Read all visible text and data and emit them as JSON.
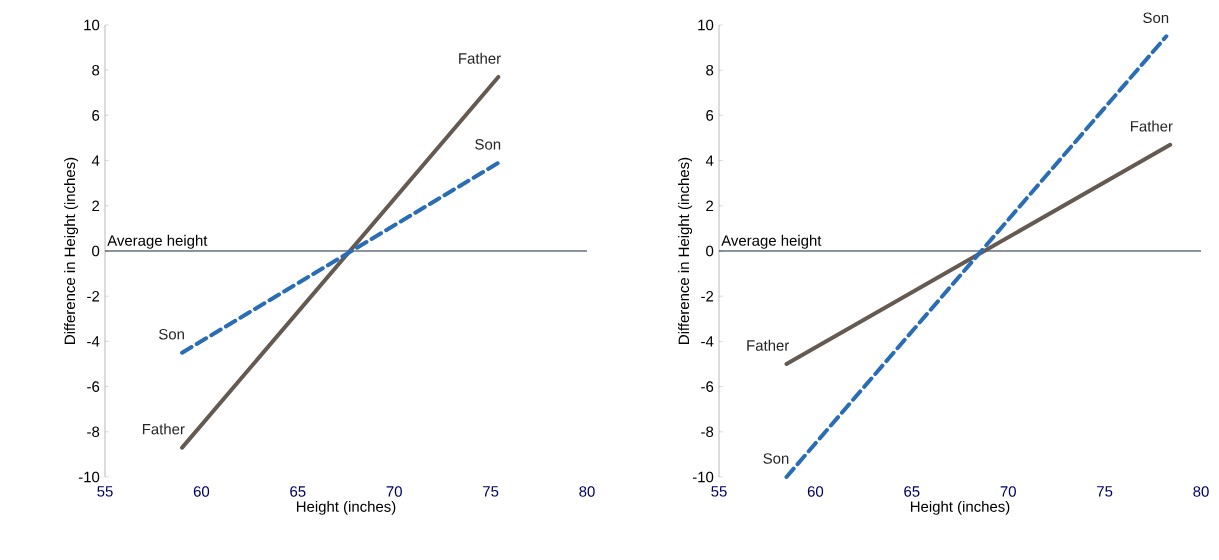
{
  "chart_data": [
    {
      "type": "line",
      "xlabel": "Height (inches)",
      "ylabel": "Difference in Height (inches)",
      "xlim": [
        55,
        80
      ],
      "ylim": [
        -10,
        10
      ],
      "xticks": [
        55,
        60,
        65,
        70,
        75,
        80
      ],
      "yticks": [
        -10,
        -8,
        -6,
        -4,
        -2,
        0,
        2,
        4,
        6,
        8,
        10
      ],
      "grid": false,
      "marker": "none",
      "ref_lines": [
        {
          "axis": "y",
          "value": 0,
          "label": "Average height",
          "color": "#1b2a41"
        }
      ],
      "series": [
        {
          "name": "Father",
          "color": "#655a52",
          "line_style": "solid",
          "x": [
            59.0,
            75.4
          ],
          "values": [
            -8.7,
            7.7
          ]
        },
        {
          "name": "Son",
          "color": "#2a6db5",
          "line_style": "dashed",
          "x": [
            59.0,
            75.4
          ],
          "values": [
            -4.5,
            3.9
          ]
        }
      ]
    },
    {
      "type": "line",
      "xlabel": "Height (inches)",
      "ylabel": "Difference in Height (inches)",
      "xlim": [
        55,
        80
      ],
      "ylim": [
        -10,
        10
      ],
      "xticks": [
        55,
        60,
        65,
        70,
        75,
        80
      ],
      "yticks": [
        -10,
        -8,
        -6,
        -4,
        -2,
        0,
        2,
        4,
        6,
        8,
        10
      ],
      "grid": false,
      "marker": "none",
      "ref_lines": [
        {
          "axis": "y",
          "value": 0,
          "label": "Average height",
          "color": "#1b2a41"
        }
      ],
      "series": [
        {
          "name": "Father",
          "color": "#655a52",
          "line_style": "solid",
          "x": [
            58.5,
            78.4
          ],
          "values": [
            -5.0,
            4.7
          ]
        },
        {
          "name": "Son",
          "color": "#2a6db5",
          "line_style": "dashed",
          "x": [
            58.5,
            78.2
          ],
          "values": [
            -10.0,
            9.5
          ]
        }
      ]
    }
  ]
}
